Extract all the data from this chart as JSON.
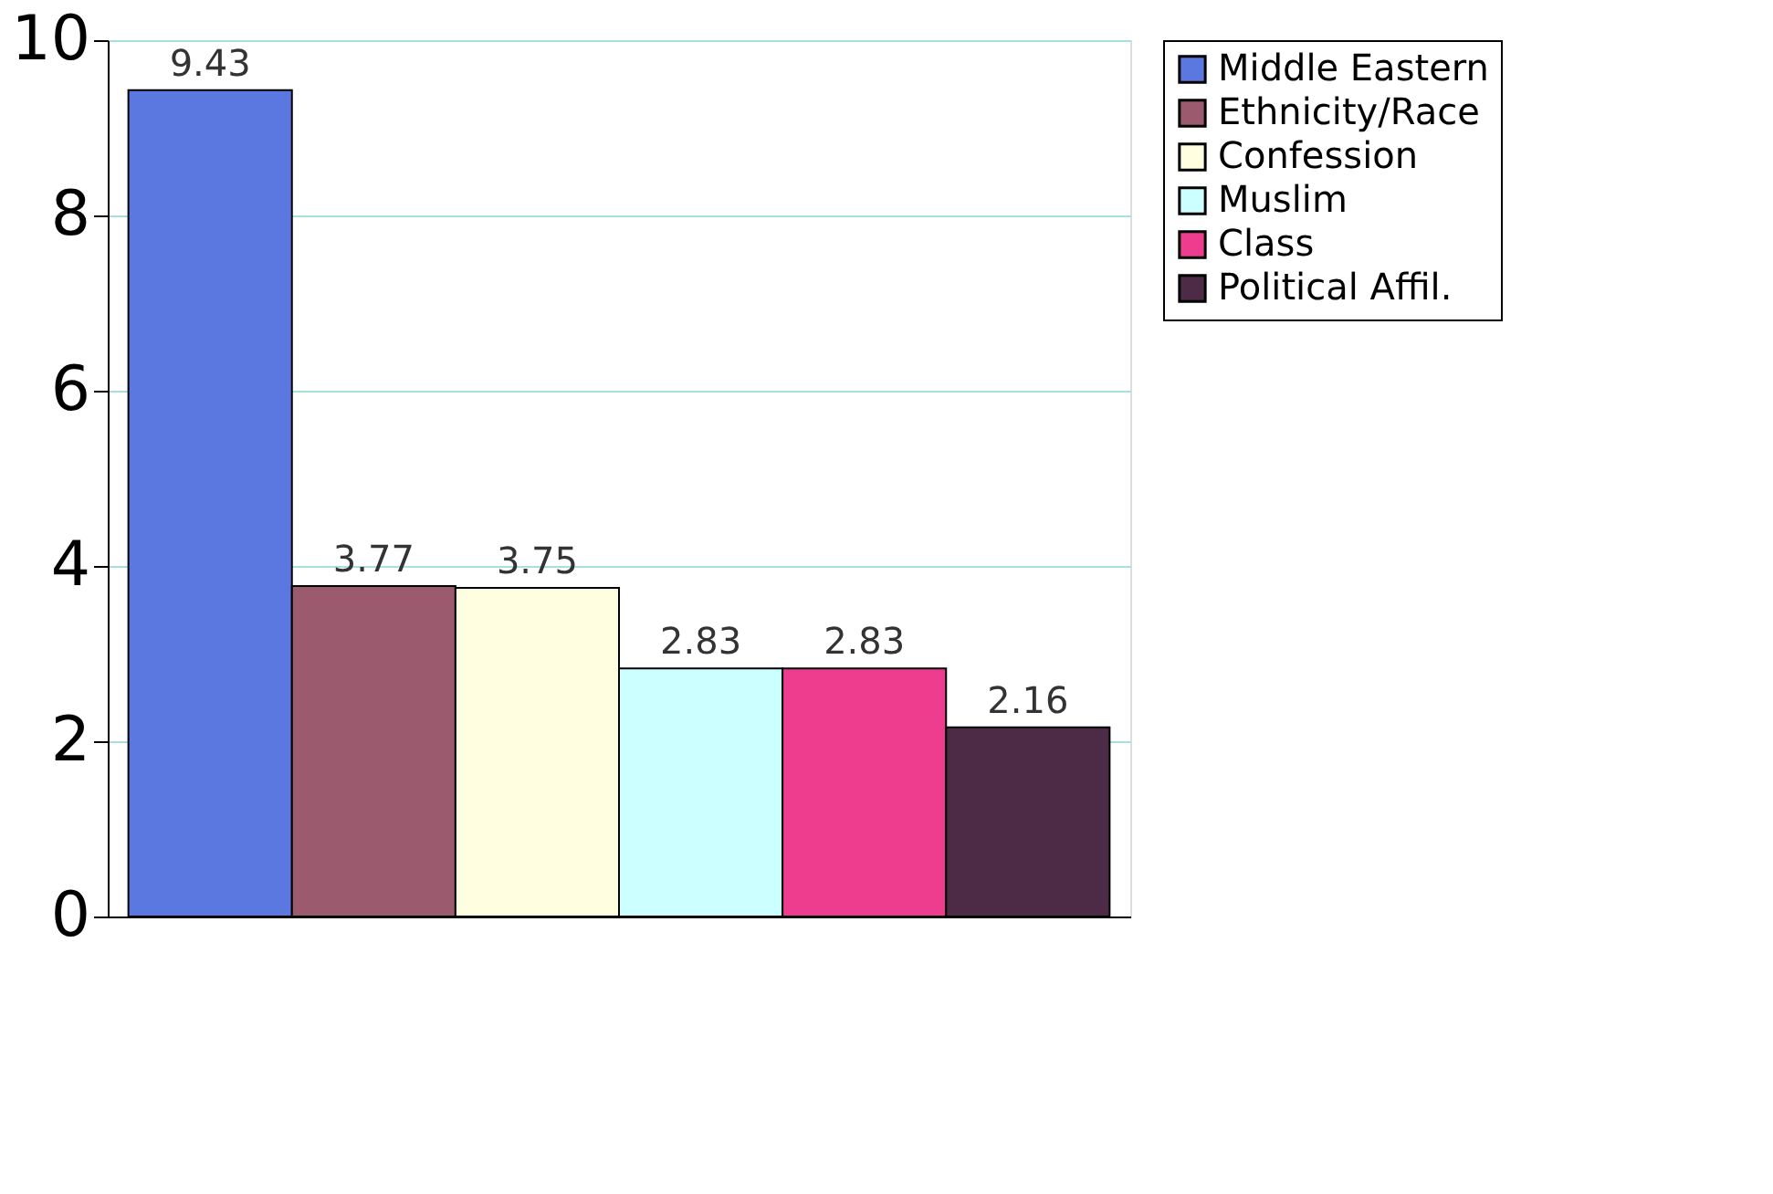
{
  "chart_data": {
    "type": "bar",
    "categories": [
      null
    ],
    "series": [
      {
        "name": "Middle Eastern",
        "color": "#5b78e0",
        "values": [
          9.43
        ]
      },
      {
        "name": "Ethnicity/Race",
        "color": "#9b5a6e",
        "values": [
          3.77
        ]
      },
      {
        "name": "Confession",
        "color": "#fffee0",
        "values": [
          3.75
        ]
      },
      {
        "name": "Muslim",
        "color": "#ccffff",
        "values": [
          2.83
        ]
      },
      {
        "name": "Class",
        "color": "#ee3d8f",
        "values": [
          2.83
        ]
      },
      {
        "name": "Political Affil.",
        "color": "#4d2a45",
        "values": [
          2.16
        ]
      }
    ],
    "ylim": [
      0,
      10
    ],
    "yticks": [
      0,
      2,
      4,
      6,
      8,
      10
    ],
    "grid": "y",
    "legend": "right",
    "data_labels": true,
    "tick_labels": "y"
  }
}
